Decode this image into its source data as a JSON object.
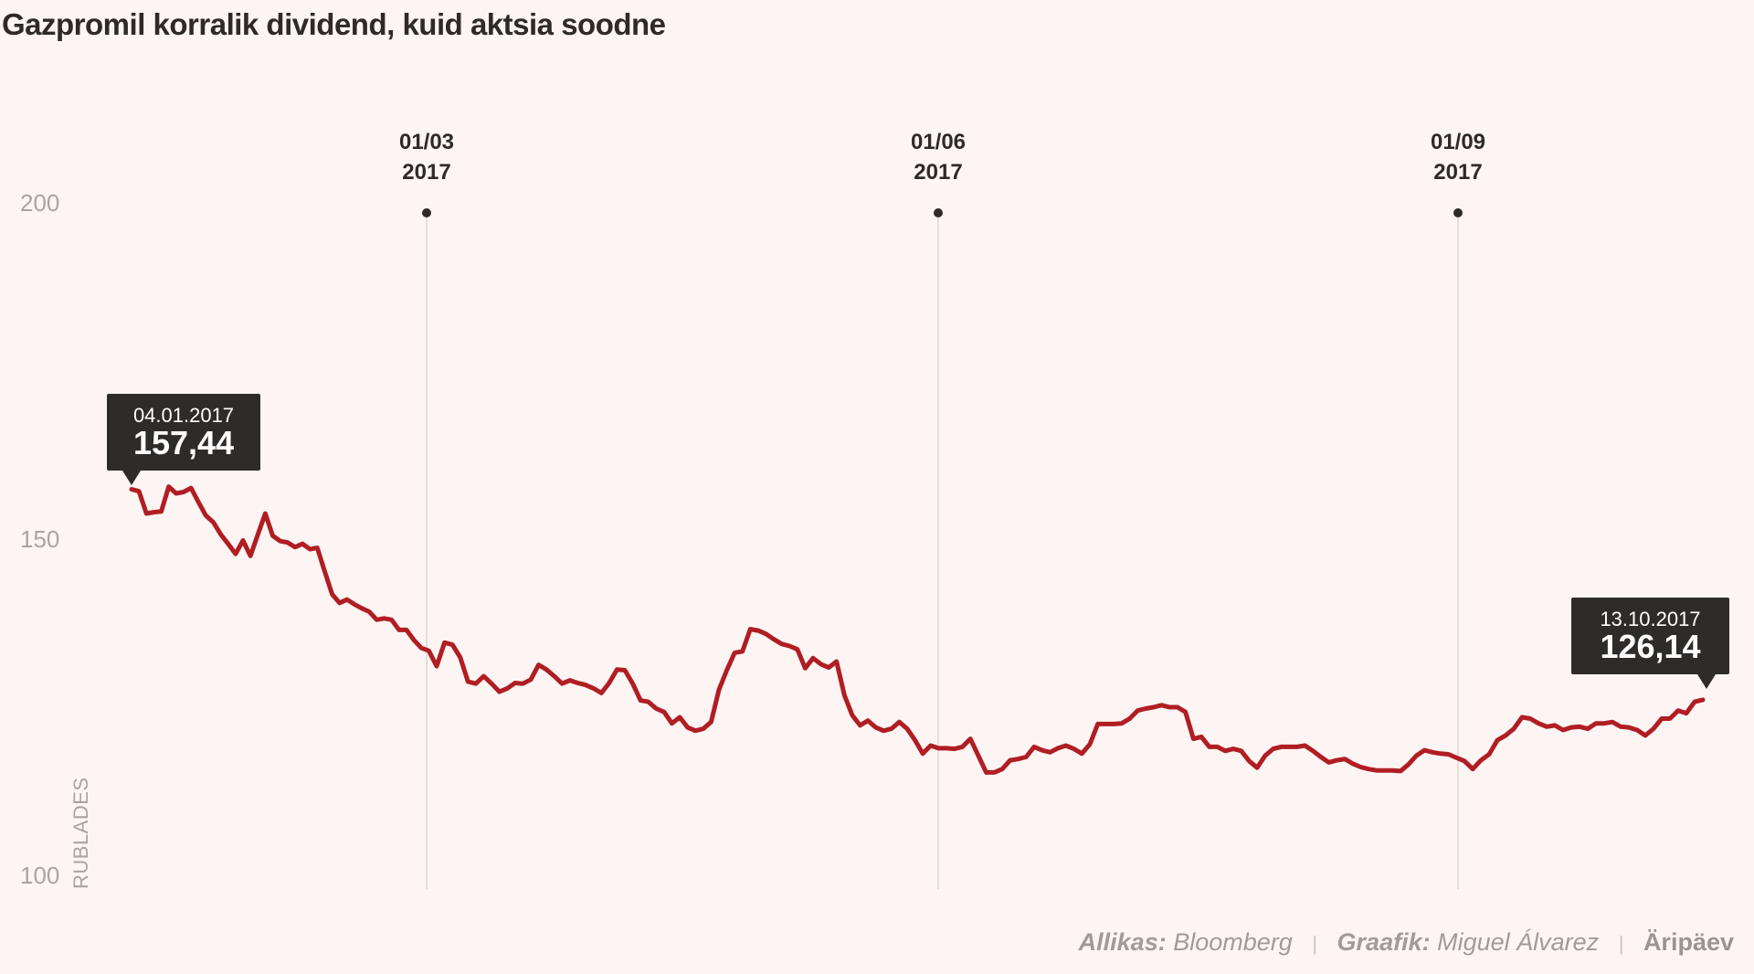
{
  "title": "Gazpromil korralik dividend, kuid aktsia soodne",
  "footer": {
    "source_label": "Allikas:",
    "source_value": "Bloomberg",
    "author_label": "Graafik:",
    "author_value": "Miguel Álvarez",
    "brand": "Äripäev",
    "separator": "|"
  },
  "tooltips": {
    "start": {
      "date": "04.01.2017",
      "value": "157,44"
    },
    "end": {
      "date": "13.10.2017",
      "value": "126,14"
    }
  },
  "colors": {
    "line": "#b01e23",
    "background": "#fdf5f3",
    "tooltip": "#2e2c2b"
  },
  "chart_data": {
    "type": "line",
    "title": "Gazpromil korralik dividend, kuid aktsia soodne",
    "xlabel": "",
    "ylabel": "RUBLADES",
    "ylim": [
      100,
      200
    ],
    "yticks": [
      {
        "value": 100,
        "label": "100"
      },
      {
        "value": 150,
        "label": "150"
      },
      {
        "value": 200,
        "label": "200"
      }
    ],
    "x_unit": "day of year 2017",
    "xlim": [
      4,
      286
    ],
    "xticks": [
      {
        "day": 60,
        "label_top": "01/03",
        "label_bottom": "2017"
      },
      {
        "day": 152,
        "label_top": "01/06",
        "label_bottom": "2017"
      },
      {
        "day": 244,
        "label_top": "01/09",
        "label_bottom": "2017"
      }
    ],
    "grid": false,
    "legend": "none",
    "series": [
      {
        "name": "Gazprom",
        "start_day": 4,
        "end_day": 286,
        "values": [
          157.4,
          157.1,
          153.8,
          154.0,
          154.1,
          157.8,
          156.8,
          157.0,
          157.6,
          155.5,
          153.5,
          152.5,
          150.7,
          149.3,
          147.8,
          149.8,
          147.5,
          150.7,
          153.8,
          150.5,
          149.7,
          149.5,
          148.8,
          149.3,
          148.5,
          148.7,
          145.2,
          141.8,
          140.5,
          141.0,
          140.3,
          139.7,
          139.2,
          138.0,
          138.2,
          138.0,
          136.5,
          136.5,
          135.0,
          133.8,
          133.4,
          131.1,
          134.6,
          134.3,
          132.4,
          128.8,
          128.5,
          129.6,
          128.5,
          127.3,
          127.8,
          128.6,
          128.5,
          129.1,
          131.3,
          130.6,
          129.6,
          128.5,
          129.0,
          128.6,
          128.3,
          127.8,
          127.1,
          128.6,
          130.6,
          130.5,
          128.5,
          126.0,
          125.8,
          124.8,
          124.3,
          122.6,
          123.5,
          122.0,
          121.5,
          121.8,
          122.8,
          127.6,
          130.5,
          133.1,
          133.3,
          136.6,
          136.4,
          135.9,
          135.1,
          134.4,
          134.1,
          133.6,
          130.8,
          132.3,
          131.4,
          130.9,
          131.8,
          126.8,
          123.8,
          122.3,
          123.0,
          122.0,
          121.5,
          121.8,
          122.8,
          121.8,
          120.1,
          118.1,
          119.3,
          118.9,
          118.9,
          118.8,
          119.1,
          120.3,
          117.8,
          115.3,
          115.3,
          115.8,
          117.1,
          117.3,
          117.6,
          119.1,
          118.6,
          118.3,
          118.9,
          119.3,
          118.8,
          118.1,
          119.5,
          122.5,
          122.5,
          122.5,
          122.6,
          123.3,
          124.5,
          124.8,
          125.0,
          125.3,
          125.0,
          125.0,
          124.3,
          120.3,
          120.6,
          119.1,
          119.1,
          118.5,
          118.8,
          118.5,
          117.0,
          116.0,
          117.8,
          118.8,
          119.1,
          119.1,
          119.1,
          119.3,
          118.5,
          117.6,
          116.8,
          117.1,
          117.3,
          116.6,
          116.1,
          115.8,
          115.6,
          115.6,
          115.6,
          115.5,
          116.5,
          117.8,
          118.6,
          118.3,
          118.1,
          118.0,
          117.5,
          117.0,
          115.8,
          117.1,
          118.0,
          120.1,
          120.8,
          121.8,
          123.5,
          123.3,
          122.6,
          122.1,
          122.3,
          121.6,
          122.0,
          122.1,
          121.8,
          122.6,
          122.6,
          122.8,
          122.1,
          122.0,
          121.6,
          120.8,
          121.8,
          123.3,
          123.3,
          124.5,
          124.1,
          125.8,
          126.1
        ]
      }
    ]
  }
}
